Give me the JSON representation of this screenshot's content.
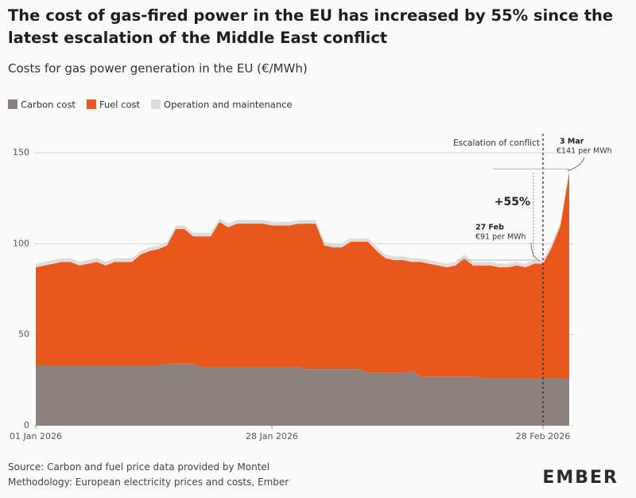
{
  "chart_data": {
    "type": "stacked-area",
    "title": "The cost of gas-fired power in the EU has increased by 55% since the latest escalation of the Middle East conflict",
    "subtitle": "Costs for gas power generation in the EU (€/MWh)",
    "x": [
      "2026-01-01",
      "2026-01-02",
      "2026-01-03",
      "2026-01-04",
      "2026-01-05",
      "2026-01-06",
      "2026-01-07",
      "2026-01-08",
      "2026-01-09",
      "2026-01-10",
      "2026-01-11",
      "2026-01-12",
      "2026-01-13",
      "2026-01-14",
      "2026-01-15",
      "2026-01-16",
      "2026-01-17",
      "2026-01-18",
      "2026-01-19",
      "2026-01-20",
      "2026-01-21",
      "2026-01-22",
      "2026-01-23",
      "2026-01-24",
      "2026-01-25",
      "2026-01-26",
      "2026-01-27",
      "2026-01-28",
      "2026-01-29",
      "2026-01-30",
      "2026-01-31",
      "2026-02-01",
      "2026-02-02",
      "2026-02-03",
      "2026-02-04",
      "2026-02-05",
      "2026-02-06",
      "2026-02-07",
      "2026-02-08",
      "2026-02-09",
      "2026-02-10",
      "2026-02-11",
      "2026-02-12",
      "2026-02-13",
      "2026-02-14",
      "2026-02-15",
      "2026-02-16",
      "2026-02-17",
      "2026-02-18",
      "2026-02-19",
      "2026-02-20",
      "2026-02-21",
      "2026-02-22",
      "2026-02-23",
      "2026-02-24",
      "2026-02-25",
      "2026-02-26",
      "2026-02-27",
      "2026-02-28",
      "2026-03-01",
      "2026-03-02",
      "2026-03-03"
    ],
    "series": [
      {
        "name": "Carbon cost",
        "color": "#8d817d",
        "values": [
          33,
          33,
          33,
          33,
          33,
          33,
          33,
          33,
          33,
          33,
          33,
          33,
          33,
          33,
          33,
          34,
          34,
          34,
          34,
          32,
          32,
          32,
          32,
          32,
          32,
          32,
          32,
          32,
          32,
          32,
          32,
          31,
          31,
          31,
          31,
          31,
          31,
          31,
          29,
          29,
          29,
          29,
          29,
          30,
          27,
          27,
          27,
          27,
          27,
          27,
          27,
          26,
          26,
          26,
          26,
          26,
          26,
          26,
          26,
          26,
          26,
          26
        ]
      },
      {
        "name": "Fuel cost",
        "color": "#e8581d",
        "values": [
          54,
          55,
          56,
          57,
          57,
          55,
          56,
          57,
          55,
          57,
          57,
          57,
          61,
          63,
          64,
          65,
          74,
          74,
          70,
          72,
          72,
          80,
          77,
          79,
          79,
          79,
          79,
          78,
          78,
          78,
          79,
          80,
          80,
          68,
          67,
          67,
          70,
          70,
          72,
          67,
          63,
          62,
          62,
          60,
          63,
          62,
          61,
          60,
          61,
          65,
          61,
          62,
          62,
          61,
          61,
          62,
          61,
          63,
          63,
          72,
          84,
          113
        ]
      },
      {
        "name": "Operation and maintenance",
        "color": "#dcdcdc",
        "values": [
          2,
          2,
          2,
          2,
          2,
          2,
          2,
          2,
          2,
          2,
          2,
          2,
          2,
          2,
          2,
          2,
          2,
          2,
          2,
          2,
          2,
          2,
          2,
          2,
          2,
          2,
          2,
          2,
          2,
          2,
          2,
          2,
          2,
          2,
          2,
          2,
          2,
          2,
          2,
          2,
          2,
          2,
          2,
          2,
          2,
          2,
          2,
          2,
          2,
          2,
          2,
          2,
          2,
          2,
          2,
          2,
          2,
          2,
          2,
          2,
          2,
          2
        ]
      }
    ],
    "xlim": [
      "2026-01-01",
      "2026-03-03"
    ],
    "xticks": [
      {
        "value": "2026-01-01",
        "label": "01 Jan 2026"
      },
      {
        "value": "2026-01-28",
        "label": "28 Jan 2026"
      },
      {
        "value": "2026-02-28",
        "label": "28 Feb 2026"
      }
    ],
    "ylim": [
      0,
      150
    ],
    "yticks": [
      0,
      50,
      100,
      150
    ],
    "grid": true,
    "annotations": {
      "escalation": {
        "text": "Escalation of conflict",
        "date": "2026-02-28"
      },
      "end": {
        "title": "3 Mar",
        "label": "€141 per MWh",
        "value": 141
      },
      "start": {
        "title": "27 Feb",
        "label": "€91 per MWh",
        "value": 91
      },
      "change": "+55%"
    },
    "source": "Source: Carbon and fuel price data provided by Montel",
    "methodology": "Methodology: European electricity prices and costs, Ember",
    "logo": "EMBER"
  }
}
